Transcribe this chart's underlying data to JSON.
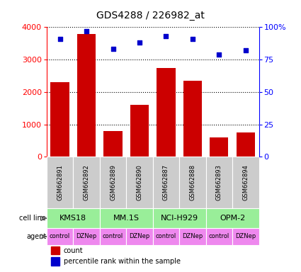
{
  "title": "GDS4288 / 226982_at",
  "samples": [
    "GSM662891",
    "GSM662892",
    "GSM662889",
    "GSM662890",
    "GSM662887",
    "GSM662888",
    "GSM662893",
    "GSM662894"
  ],
  "counts": [
    2300,
    3800,
    800,
    1600,
    2750,
    2350,
    600,
    750
  ],
  "percentile_ranks": [
    91,
    97,
    83,
    88,
    93,
    91,
    79,
    82
  ],
  "cell_lines": [
    {
      "label": "KMS18",
      "start": 0,
      "end": 2
    },
    {
      "label": "MM.1S",
      "start": 2,
      "end": 4
    },
    {
      "label": "NCI-H929",
      "start": 4,
      "end": 6
    },
    {
      "label": "OPM-2",
      "start": 6,
      "end": 8
    }
  ],
  "agents": [
    "control",
    "DZNep",
    "control",
    "DZNep",
    "control",
    "DZNep",
    "control",
    "DZNep"
  ],
  "bar_color": "#cc0000",
  "scatter_color": "#0000cc",
  "left_yticks": [
    0,
    1000,
    2000,
    3000,
    4000
  ],
  "right_ytick_vals": [
    0,
    25,
    50,
    75,
    100
  ],
  "right_ytick_labels": [
    "0",
    "25",
    "50",
    "75",
    "100%"
  ],
  "left_ylim": [
    0,
    4000
  ],
  "right_ylim": [
    0,
    100
  ],
  "cell_line_color": "#99ee99",
  "agent_color": "#ee88ee",
  "sample_bg_color": "#cccccc",
  "legend_count_color": "#cc0000",
  "legend_pct_color": "#0000cc",
  "left_label_color": "red",
  "right_label_color": "blue"
}
